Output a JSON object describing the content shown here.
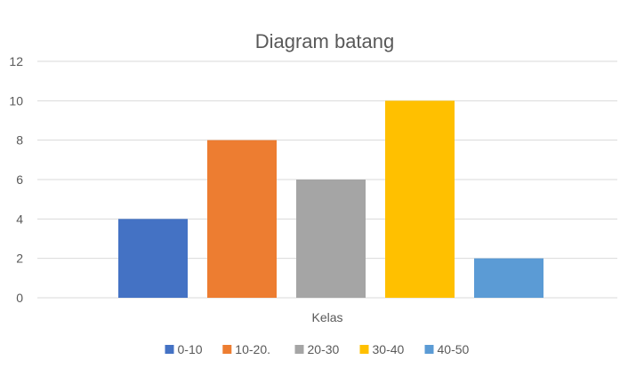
{
  "chart_data": {
    "type": "bar",
    "title": "Diagram batang",
    "xlabel": "Kelas",
    "ylabel": "",
    "ylim": [
      0,
      12
    ],
    "yticks": [
      0,
      2,
      4,
      6,
      8,
      10,
      12
    ],
    "grid": true,
    "legend_position": "bottom",
    "categories": [
      "Kelas"
    ],
    "series": [
      {
        "name": "0-10",
        "values": [
          4
        ],
        "color": "#4472C4"
      },
      {
        "name": "10-20.",
        "values": [
          8
        ],
        "color": "#ED7D31"
      },
      {
        "name": "20-30",
        "values": [
          6
        ],
        "color": "#A5A5A5"
      },
      {
        "name": "30-40",
        "values": [
          10
        ],
        "color": "#FFC000"
      },
      {
        "name": "40-50",
        "values": [
          2
        ],
        "color": "#5B9BD5"
      }
    ]
  }
}
